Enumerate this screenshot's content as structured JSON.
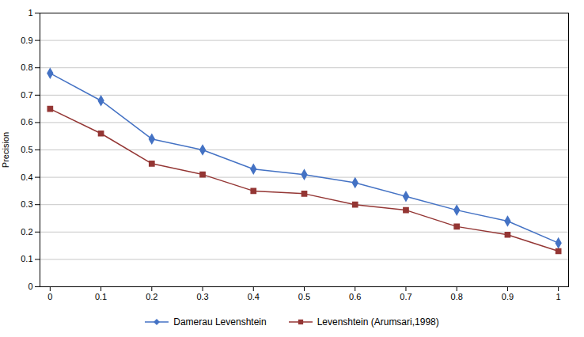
{
  "chart_data": {
    "type": "line",
    "y_label": "Precision",
    "x": [
      0,
      0.1,
      0.2,
      0.3,
      0.4,
      0.5,
      0.6,
      0.7,
      0.8,
      0.9,
      1.0
    ],
    "series": [
      {
        "name": "Damerau Levenshtein",
        "color": "#4472C4",
        "marker": "diamond",
        "values": [
          0.78,
          0.68,
          0.54,
          0.5,
          0.43,
          0.41,
          0.38,
          0.33,
          0.28,
          0.24,
          0.16
        ]
      },
      {
        "name": "Levenshtein (Arumsari,1998)",
        "color": "#943634",
        "marker": "square",
        "values": [
          0.65,
          0.56,
          0.45,
          0.41,
          0.35,
          0.34,
          0.3,
          0.28,
          0.22,
          0.19,
          0.13
        ]
      }
    ],
    "xlim": [
      -0.02,
      1.02
    ],
    "ylim": [
      0,
      1
    ],
    "xticks": [
      0,
      0.1,
      0.2,
      0.3,
      0.4,
      0.5,
      0.6,
      0.7,
      0.8,
      0.9,
      1
    ],
    "yticks": [
      0,
      0.1,
      0.2,
      0.3,
      0.4,
      0.5,
      0.6,
      0.7,
      0.8,
      0.9,
      1
    ],
    "grid": "y",
    "legend": "bottom"
  }
}
